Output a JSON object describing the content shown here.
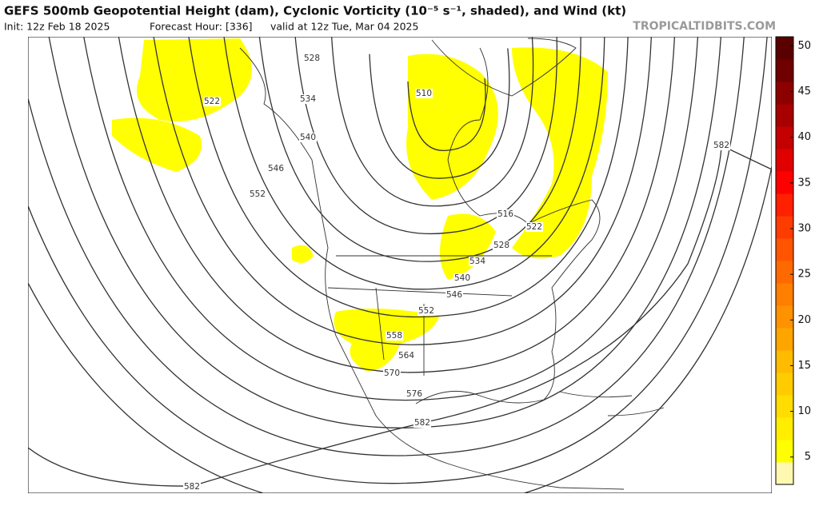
{
  "header": {
    "title": "GEFS 500mb Geopotential Height (dam), Cyclonic Vorticity (10⁻⁵ s⁻¹, shaded), and Wind (kt)",
    "init": "Init: 12z Feb 18 2025",
    "forecast": "Forecast Hour: [336]",
    "valid": "valid at 12z Tue, Mar 04 2025",
    "watermark": "TROPICALTIDBITS.COM"
  },
  "colorbar": {
    "range": [
      2,
      51
    ],
    "ticks": [
      5,
      10,
      15,
      20,
      25,
      30,
      35,
      40,
      45,
      50
    ],
    "colors": [
      "#fff8b0",
      "#ffff00",
      "#ffee00",
      "#ffdd00",
      "#ffcc00",
      "#ffbb00",
      "#ffa500",
      "#ff9200",
      "#ff7f00",
      "#ff6a00",
      "#ff5500",
      "#ff3c00",
      "#ff2000",
      "#ff0000",
      "#e00000",
      "#c40000",
      "#a80000",
      "#8c0000",
      "#700000",
      "#5a0000"
    ]
  },
  "contour_labels": [
    "528",
    "522",
    "534",
    "540",
    "546",
    "552",
    "510",
    "516",
    "522",
    "528",
    "534",
    "540",
    "546",
    "552",
    "558",
    "564",
    "570",
    "576",
    "582",
    "582",
    "582"
  ]
}
